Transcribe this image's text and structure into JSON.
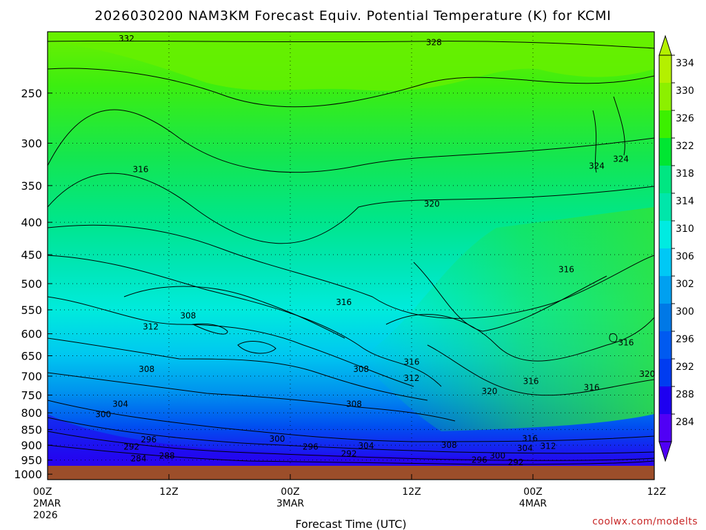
{
  "chart_data": {
    "type": "heatmap",
    "title": "2026030200 NAM3KM Forecast Equiv. Potential Temperature (K) for KCMI",
    "xlabel": "Forecast Time (UTC)",
    "ylabel": "",
    "credit": "coolwx.com/modelts",
    "x_ticks": [
      {
        "hours": 0,
        "label": "00Z",
        "sub1": "2MAR",
        "sub2": "2026"
      },
      {
        "hours": 12,
        "label": "12Z",
        "sub1": "",
        "sub2": ""
      },
      {
        "hours": 24,
        "label": "00Z",
        "sub1": "3MAR",
        "sub2": ""
      },
      {
        "hours": 36,
        "label": "12Z",
        "sub1": "",
        "sub2": ""
      },
      {
        "hours": 48,
        "label": "00Z",
        "sub1": "4MAR",
        "sub2": ""
      },
      {
        "hours": 60,
        "label": "12Z",
        "sub1": "",
        "sub2": ""
      }
    ],
    "xlim": [
      0,
      60
    ],
    "y_ticks": [
      "250",
      "300",
      "350",
      "400",
      "450",
      "500",
      "550",
      "600",
      "650",
      "700",
      "750",
      "800",
      "850",
      "900",
      "950",
      "1000"
    ],
    "ylim_hpa": [
      1020,
      200
    ],
    "colorbar": {
      "labels": [
        "334",
        "330",
        "326",
        "322",
        "318",
        "314",
        "310",
        "306",
        "302",
        "300",
        "296",
        "292",
        "288",
        "284"
      ],
      "values": [
        334,
        330,
        326,
        322,
        318,
        314,
        310,
        306,
        302,
        300,
        296,
        292,
        288,
        284
      ],
      "colors": [
        "#b4f000",
        "#8cf000",
        "#3cf000",
        "#00e632",
        "#00e682",
        "#00e6aa",
        "#00ebe1",
        "#00c8f5",
        "#00a0f0",
        "#0078e6",
        "#005af0",
        "#003cf0",
        "#1e00f0",
        "#5000f5"
      ]
    },
    "contour_labels": [
      {
        "text": "332",
        "t": 7.8,
        "p": 205
      },
      {
        "text": "328",
        "t": 38.2,
        "p": 208
      },
      {
        "text": "316",
        "t": 9.2,
        "p": 330
      },
      {
        "text": "320",
        "t": 38.0,
        "p": 374
      },
      {
        "text": "324",
        "t": 54.3,
        "p": 326
      },
      {
        "text": "324",
        "t": 56.7,
        "p": 318
      },
      {
        "text": "316",
        "t": 51.3,
        "p": 475
      },
      {
        "text": "316",
        "t": 29.3,
        "p": 535
      },
      {
        "text": "308",
        "t": 13.9,
        "p": 562
      },
      {
        "text": "312",
        "t": 10.2,
        "p": 585
      },
      {
        "text": "316",
        "t": 36.0,
        "p": 665
      },
      {
        "text": "316",
        "t": 57.2,
        "p": 620
      },
      {
        "text": "308",
        "t": 9.8,
        "p": 683
      },
      {
        "text": "308",
        "t": 31.0,
        "p": 683
      },
      {
        "text": "312",
        "t": 36.0,
        "p": 705
      },
      {
        "text": "320",
        "t": 59.3,
        "p": 695
      },
      {
        "text": "316",
        "t": 47.8,
        "p": 713
      },
      {
        "text": "316",
        "t": 53.8,
        "p": 730
      },
      {
        "text": "320",
        "t": 43.7,
        "p": 740
      },
      {
        "text": "304",
        "t": 7.2,
        "p": 775
      },
      {
        "text": "308",
        "t": 30.3,
        "p": 775
      },
      {
        "text": "300",
        "t": 5.5,
        "p": 805
      },
      {
        "text": "316",
        "t": 47.7,
        "p": 878
      },
      {
        "text": "300",
        "t": 22.7,
        "p": 880
      },
      {
        "text": "296",
        "t": 10.0,
        "p": 882
      },
      {
        "text": "304",
        "t": 31.5,
        "p": 902
      },
      {
        "text": "308",
        "t": 39.7,
        "p": 900
      },
      {
        "text": "312",
        "t": 49.5,
        "p": 903
      },
      {
        "text": "304",
        "t": 47.2,
        "p": 910
      },
      {
        "text": "296",
        "t": 26.0,
        "p": 905
      },
      {
        "text": "292",
        "t": 8.3,
        "p": 905
      },
      {
        "text": "292",
        "t": 29.8,
        "p": 928
      },
      {
        "text": "288",
        "t": 11.8,
        "p": 935
      },
      {
        "text": "284",
        "t": 9.0,
        "p": 945
      },
      {
        "text": "300",
        "t": 44.5,
        "p": 935
      },
      {
        "text": "296",
        "t": 42.7,
        "p": 950
      },
      {
        "text": "292",
        "t": 46.3,
        "p": 958
      }
    ]
  }
}
